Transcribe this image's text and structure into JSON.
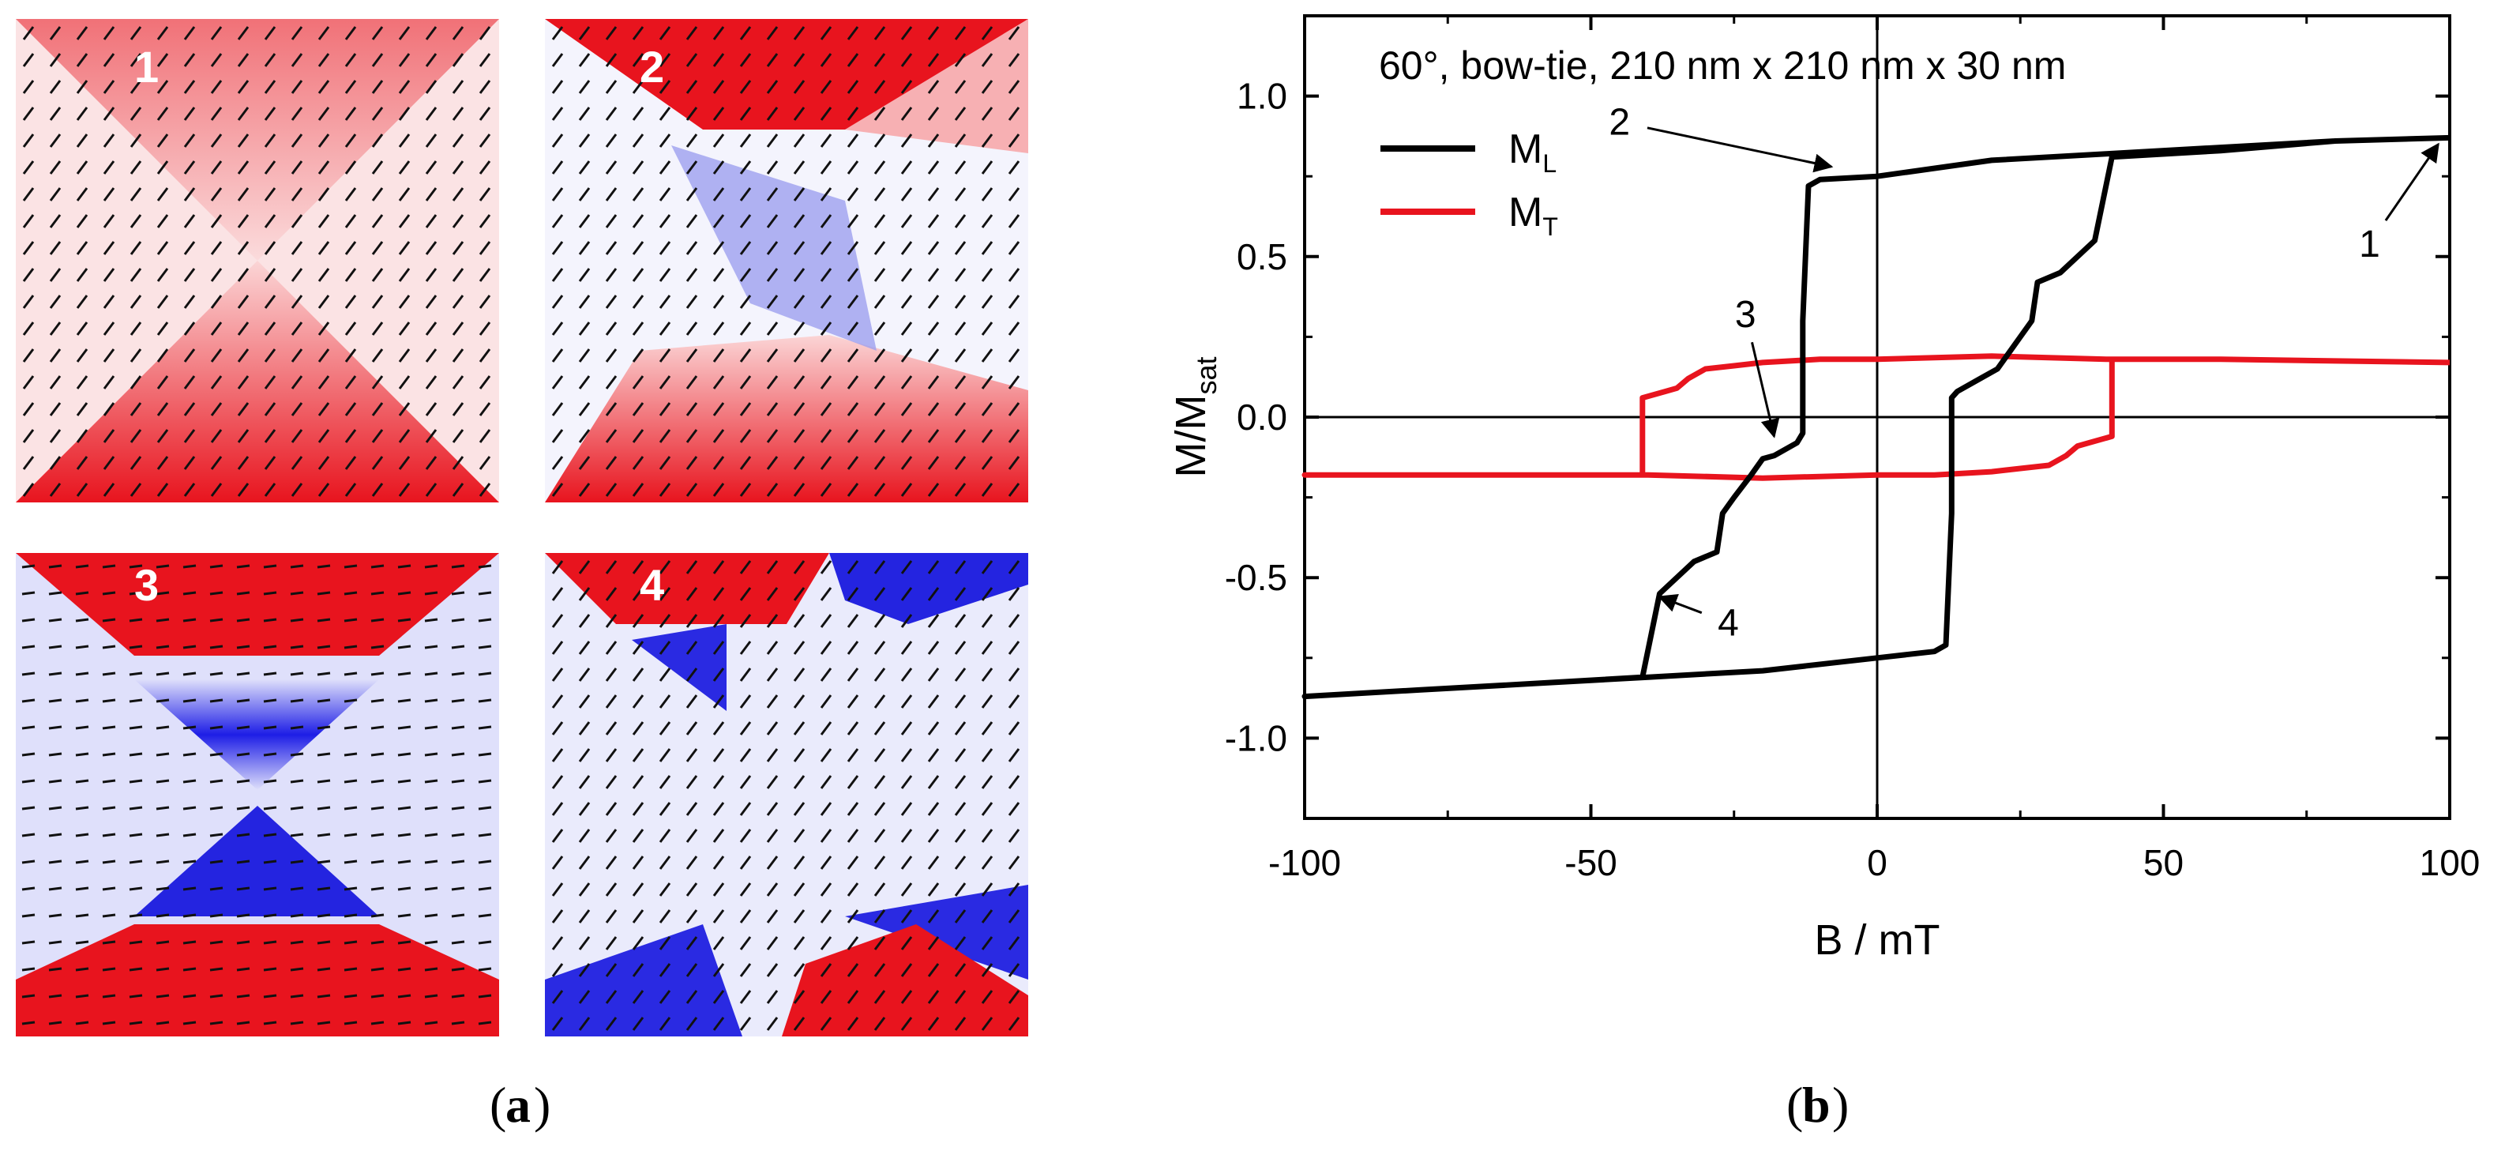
{
  "panel_a": {
    "label_a": "a",
    "panels": [
      {
        "number": "1",
        "vortex": "red-saturated"
      },
      {
        "number": "2",
        "vortex": "red-blue-split"
      },
      {
        "number": "3",
        "vortex": "blue-center"
      },
      {
        "number": "4",
        "vortex": "red-blue-quadrants"
      }
    ]
  },
  "panel_b": {
    "label_b": "b"
  },
  "colors": {
    "red": "#e8141e",
    "blue": "#1e1ee6",
    "black": "#000000",
    "curve_red": "#e8141e"
  },
  "chart_data": {
    "type": "line",
    "title": "60°, bow-tie, 210 nm x 210 nm x 30 nm",
    "xlabel": "B / mT",
    "ylabel_main": "M/M",
    "ylabel_sub": "sat",
    "xlim": [
      -100,
      100
    ],
    "ylim": [
      -1.25,
      1.25
    ],
    "x_ticks": [
      -100,
      -50,
      0,
      50,
      100
    ],
    "x_tick_labels": [
      "-100",
      "-50",
      "0",
      "50",
      "100"
    ],
    "y_ticks": [
      -1.0,
      -0.5,
      0.0,
      0.5,
      1.0
    ],
    "y_tick_labels": [
      "-1.0",
      "-0.5",
      "0.0",
      "0.5",
      "1.0"
    ],
    "series": [
      {
        "name": "M_L",
        "legend_main": "M",
        "legend_sub": "L",
        "color": "#000000",
        "points": [
          [
            100,
            0.87
          ],
          [
            80,
            0.86
          ],
          [
            60,
            0.84
          ],
          [
            40,
            0.82
          ],
          [
            20,
            0.8
          ],
          [
            0,
            0.75
          ],
          [
            -10,
            0.74
          ],
          [
            -12,
            0.72
          ],
          [
            -13,
            0.3
          ],
          [
            -13,
            -0.05
          ],
          [
            -14,
            -0.08
          ],
          [
            -18,
            -0.12
          ],
          [
            -20,
            -0.13
          ],
          [
            -22,
            -0.18
          ],
          [
            -25,
            -0.25
          ],
          [
            -27,
            -0.3
          ],
          [
            -28,
            -0.42
          ],
          [
            -32,
            -0.45
          ],
          [
            -38,
            -0.55
          ],
          [
            -41,
            -0.81
          ],
          [
            -60,
            -0.83
          ],
          [
            -80,
            -0.85
          ],
          [
            -100,
            -0.87
          ],
          [
            -80,
            -0.85
          ],
          [
            -60,
            -0.83
          ],
          [
            -40,
            -0.81
          ],
          [
            -20,
            -0.79
          ],
          [
            0,
            -0.75
          ],
          [
            10,
            -0.73
          ],
          [
            12,
            -0.71
          ],
          [
            13,
            -0.3
          ],
          [
            13,
            0.06
          ],
          [
            14,
            0.08
          ],
          [
            18,
            0.12
          ],
          [
            21,
            0.15
          ],
          [
            23,
            0.2
          ],
          [
            25,
            0.25
          ],
          [
            27,
            0.3
          ],
          [
            28,
            0.42
          ],
          [
            32,
            0.45
          ],
          [
            38,
            0.55
          ],
          [
            41,
            0.81
          ],
          [
            60,
            0.83
          ],
          [
            80,
            0.86
          ],
          [
            100,
            0.87
          ]
        ]
      },
      {
        "name": "M_T",
        "legend_main": "M",
        "legend_sub": "T",
        "color": "#e8141e",
        "points": [
          [
            100,
            0.17
          ],
          [
            60,
            0.18
          ],
          [
            40,
            0.18
          ],
          [
            20,
            0.19
          ],
          [
            0,
            0.18
          ],
          [
            -10,
            0.18
          ],
          [
            -20,
            0.17
          ],
          [
            -25,
            0.16
          ],
          [
            -30,
            0.15
          ],
          [
            -33,
            0.12
          ],
          [
            -35,
            0.09
          ],
          [
            -37,
            0.08
          ],
          [
            -41,
            0.06
          ],
          [
            -41,
            -0.18
          ],
          [
            -60,
            -0.18
          ],
          [
            -100,
            -0.18
          ],
          [
            -60,
            -0.18
          ],
          [
            -40,
            -0.18
          ],
          [
            -20,
            -0.19
          ],
          [
            0,
            -0.18
          ],
          [
            10,
            -0.18
          ],
          [
            20,
            -0.17
          ],
          [
            25,
            -0.16
          ],
          [
            30,
            -0.15
          ],
          [
            33,
            -0.12
          ],
          [
            35,
            -0.09
          ],
          [
            37,
            -0.08
          ],
          [
            41,
            -0.06
          ],
          [
            41,
            0.18
          ],
          [
            60,
            0.18
          ],
          [
            100,
            0.17
          ]
        ]
      }
    ],
    "annotations": [
      {
        "label": "1",
        "text_x": 86,
        "text_y": 0.5,
        "point_x": 98,
        "point_y": 0.85
      },
      {
        "label": "2",
        "text_x": -45,
        "text_y": 0.88,
        "point_x": -8,
        "point_y": 0.78
      },
      {
        "label": "3",
        "text_x": -23,
        "text_y": 0.28,
        "point_x": -18,
        "point_y": -0.06
      },
      {
        "label": "4",
        "text_x": -26,
        "text_y": -0.68,
        "point_x": -38,
        "point_y": -0.56
      }
    ],
    "legend_position": "top-left"
  }
}
